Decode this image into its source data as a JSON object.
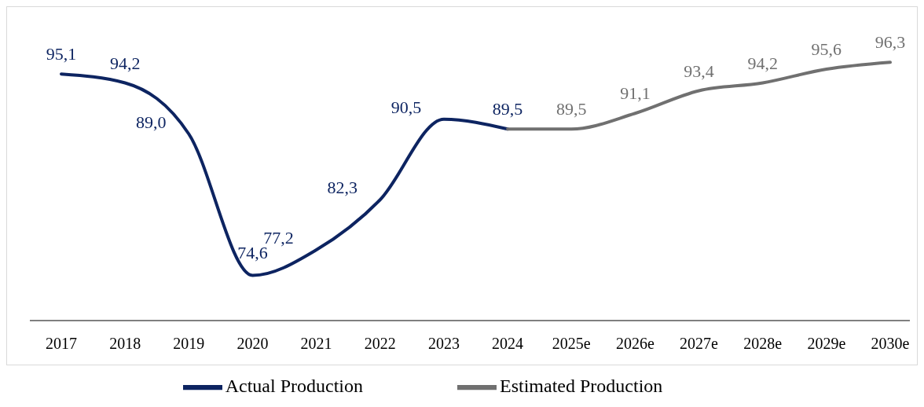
{
  "chart_data": {
    "type": "line",
    "categories": [
      "2017",
      "2018",
      "2019",
      "2020",
      "2021",
      "2022",
      "2023",
      "2024",
      "2025e",
      "2026e",
      "2027e",
      "2028e",
      "2029e",
      "2030e"
    ],
    "series": [
      {
        "name": "Actual Production",
        "color": "#0d2461",
        "values": [
          95.1,
          94.2,
          89.0,
          74.6,
          77.2,
          82.3,
          90.5,
          89.5,
          null,
          null,
          null,
          null,
          null,
          null
        ],
        "value_labels": [
          "95,1",
          "94,2",
          "89,0",
          "74,6",
          "77,2",
          "82,3",
          "90,5",
          "89,5",
          null,
          null,
          null,
          null,
          null,
          null
        ]
      },
      {
        "name": "Estimated Production",
        "color": "#707070",
        "values": [
          null,
          null,
          null,
          null,
          null,
          null,
          null,
          89.5,
          89.5,
          91.1,
          93.4,
          94.2,
          95.6,
          96.3
        ],
        "value_labels": [
          null,
          null,
          null,
          null,
          null,
          null,
          null,
          null,
          "89,5",
          "91,1",
          "93,4",
          "94,2",
          "95,6",
          "96,3"
        ]
      }
    ],
    "tick_labels": "x",
    "grid": false,
    "legend": "bottom",
    "marker": "none",
    "line_style": "solid"
  }
}
